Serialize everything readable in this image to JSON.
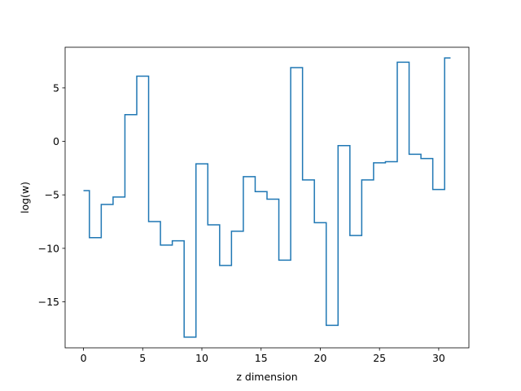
{
  "chart_data": {
    "type": "line",
    "drawstyle": "steps-mid",
    "xlabel": "z dimension",
    "ylabel": "log(w)",
    "xlim": [
      -1.55,
      32.55
    ],
    "ylim": [
      -19.3,
      8.8
    ],
    "xticks": [
      0,
      5,
      10,
      15,
      20,
      25,
      30
    ],
    "xtick_labels": [
      "0",
      "5",
      "10",
      "15",
      "20",
      "25",
      "30"
    ],
    "yticks": [
      5,
      0,
      -5,
      -10,
      -15
    ],
    "ytick_labels": [
      "5",
      "0",
      "−5",
      "−10",
      "−15"
    ],
    "grid": false,
    "legend": "none",
    "series": [
      {
        "color": "#1f77b4",
        "x": [
          0,
          1,
          2,
          3,
          4,
          5,
          6,
          7,
          8,
          9,
          10,
          11,
          12,
          13,
          14,
          15,
          16,
          17,
          18,
          19,
          20,
          21,
          22,
          23,
          24,
          25,
          26,
          27,
          28,
          29,
          30,
          31
        ],
        "values": [
          -4.6,
          -9.0,
          -5.9,
          -5.2,
          2.5,
          6.1,
          -7.5,
          -9.7,
          -9.3,
          -18.3,
          -2.1,
          -7.8,
          -11.6,
          -8.4,
          -3.3,
          -4.7,
          -5.4,
          -11.1,
          6.9,
          -3.6,
          -7.6,
          -17.2,
          -0.4,
          -8.8,
          -3.6,
          -2.0,
          -1.9,
          7.4,
          -1.2,
          -1.6,
          -4.5,
          7.8
        ]
      }
    ]
  }
}
